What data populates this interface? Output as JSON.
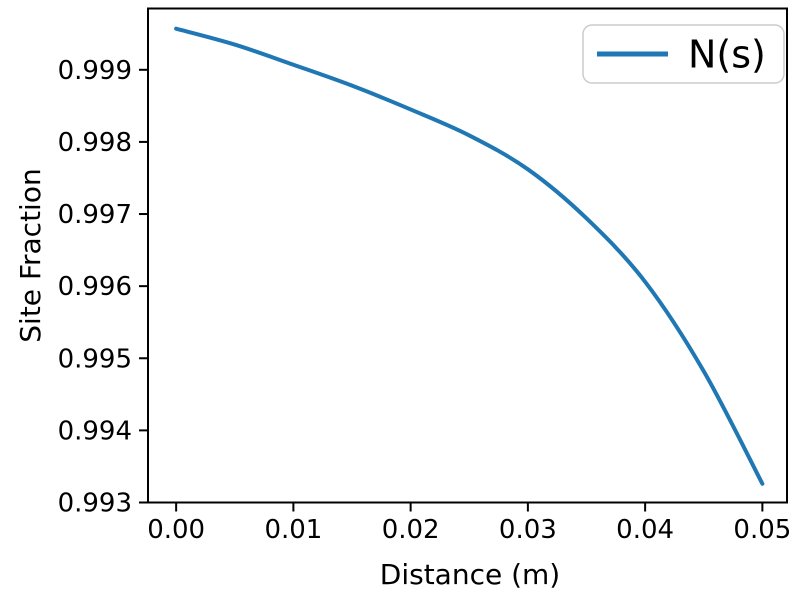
{
  "figure": {
    "background": "#ffffff"
  },
  "colors": {
    "series_line": "#1f77b4",
    "spine": "#000000",
    "text": "#000000",
    "legend_border": "#cccccc",
    "legend_background": "#ffffff"
  },
  "chart_data": {
    "type": "line",
    "title": "",
    "xlabel": "Distance (m)",
    "ylabel": "Site Fraction",
    "xlim": [
      -0.0024,
      0.0521
    ],
    "ylim": [
      0.993,
      0.99985
    ],
    "grid": false,
    "xticks": [
      0.0,
      0.01,
      0.02,
      0.03,
      0.04,
      0.05
    ],
    "xtick_labels": [
      "0.00",
      "0.01",
      "0.02",
      "0.03",
      "0.04",
      "0.05"
    ],
    "yticks": [
      0.993,
      0.994,
      0.995,
      0.996,
      0.997,
      0.998,
      0.999
    ],
    "ytick_labels": [
      "0.993",
      "0.994",
      "0.995",
      "0.996",
      "0.997",
      "0.998",
      "0.999"
    ],
    "legend": {
      "position": "upper right",
      "entries": [
        {
          "label": "N(s)",
          "color": "#1f77b4"
        }
      ]
    },
    "series": [
      {
        "name": "N(s)",
        "color": "#1f77b4",
        "x": [
          0.0,
          0.005,
          0.01,
          0.015,
          0.02,
          0.025,
          0.03,
          0.035,
          0.04,
          0.045,
          0.05
        ],
        "y": [
          0.99957,
          0.99935,
          0.99907,
          0.99878,
          0.99845,
          0.99809,
          0.99762,
          0.99694,
          0.99606,
          0.99482,
          0.99326
        ]
      }
    ]
  }
}
